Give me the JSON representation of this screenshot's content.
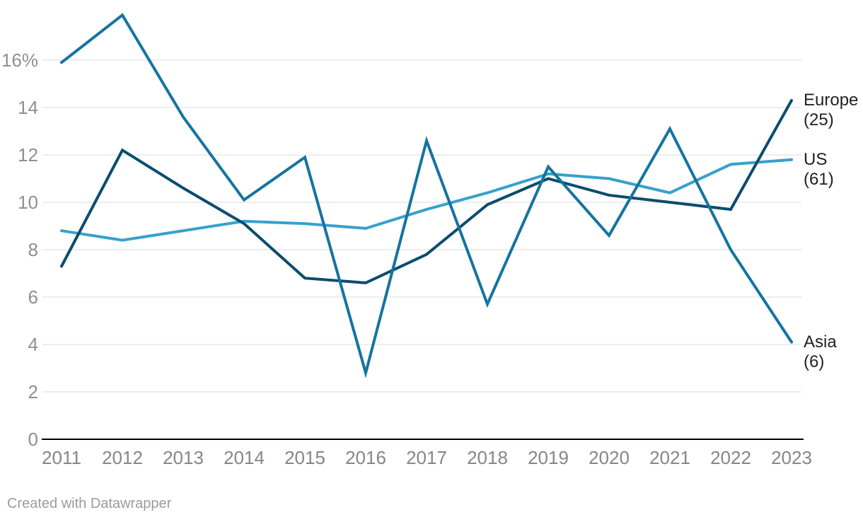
{
  "footer": {
    "text": "Created with Datawrapper"
  },
  "chart_data": {
    "type": "line",
    "title": "",
    "xlabel": "",
    "ylabel": "",
    "x_labels": [
      "2011",
      "2012",
      "2013",
      "2014",
      "2015",
      "2016",
      "2017",
      "2018",
      "2019",
      "2020",
      "2021",
      "2022",
      "2023"
    ],
    "y_ticks": [
      {
        "value": 0,
        "label": "0"
      },
      {
        "value": 2,
        "label": "2"
      },
      {
        "value": 4,
        "label": "4"
      },
      {
        "value": 6,
        "label": "6"
      },
      {
        "value": 8,
        "label": "8"
      },
      {
        "value": 10,
        "label": "10"
      },
      {
        "value": 12,
        "label": "12"
      },
      {
        "value": 14,
        "label": "14"
      },
      {
        "value": 16,
        "label": "16%"
      }
    ],
    "ylim": [
      0,
      18
    ],
    "grid": "horizontal",
    "legend_position": "right-edge-line-labels",
    "colors": {
      "axis_line": "#000000",
      "gridline": "#e7e7e7",
      "tick_text": "#8f8f8f",
      "label_text": "#222222"
    },
    "series": [
      {
        "name": "Europe",
        "count_label": "(25)",
        "color": "#0b4c6e",
        "z": 2,
        "values": [
          7.3,
          12.2,
          10.6,
          9.1,
          6.8,
          6.6,
          7.8,
          9.9,
          11.0,
          10.3,
          10.0,
          9.7,
          14.3
        ]
      },
      {
        "name": "US",
        "count_label": "(61)",
        "color": "#37a1cc",
        "z": 1,
        "values": [
          8.8,
          8.4,
          8.8,
          9.2,
          9.1,
          8.9,
          9.7,
          10.4,
          11.2,
          11.0,
          10.4,
          11.6,
          11.8
        ]
      },
      {
        "name": "Asia",
        "count_label": "(6)",
        "color": "#1474a0",
        "z": 3,
        "values": [
          15.9,
          17.9,
          13.6,
          10.1,
          11.9,
          2.8,
          12.6,
          5.7,
          11.5,
          8.6,
          13.1,
          8.0,
          4.1
        ]
      }
    ]
  }
}
